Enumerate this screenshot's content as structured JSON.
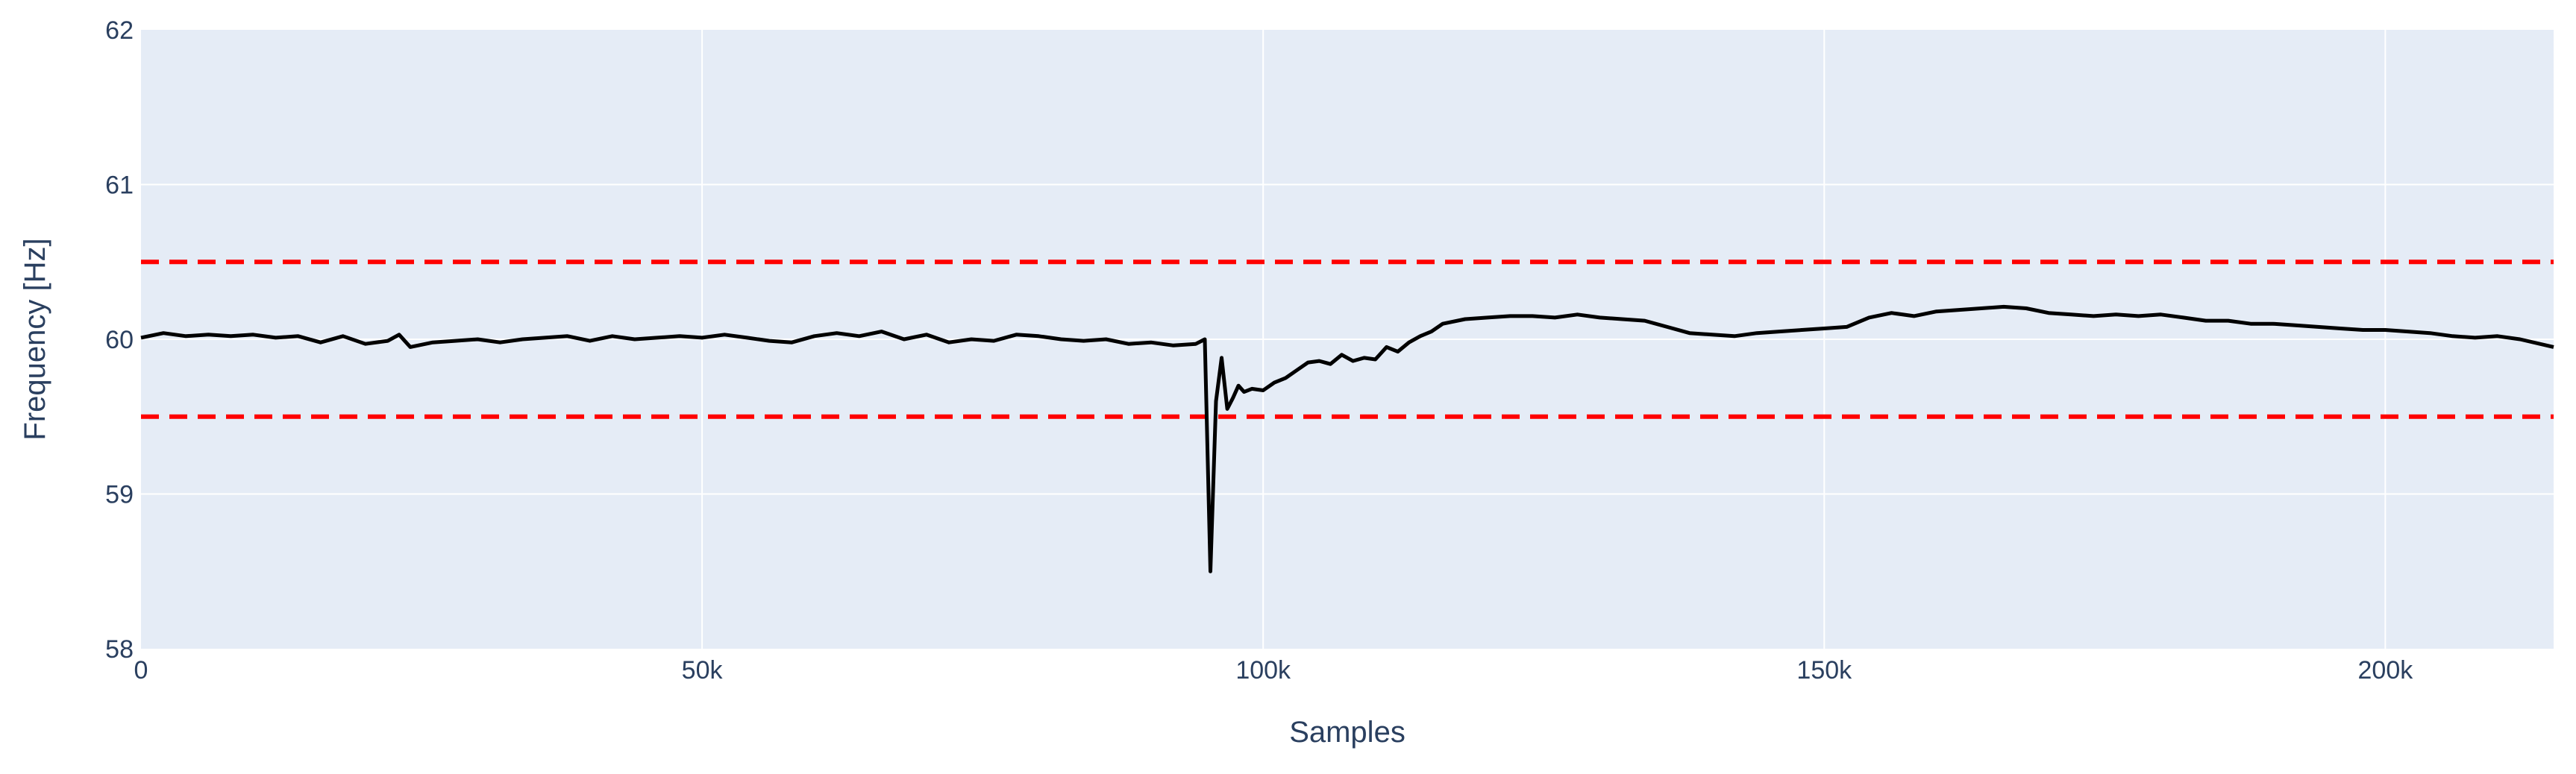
{
  "chart_data": {
    "type": "line",
    "xlabel": "Samples",
    "ylabel": "Frequency [Hz]",
    "xlim": [
      0,
      215000
    ],
    "ylim": [
      58,
      62
    ],
    "x_ticks": [
      {
        "value": 0,
        "label": "0"
      },
      {
        "value": 50000,
        "label": "50k"
      },
      {
        "value": 100000,
        "label": "100k"
      },
      {
        "value": 150000,
        "label": "150k"
      },
      {
        "value": 200000,
        "label": "200k"
      }
    ],
    "y_ticks": [
      {
        "value": 58,
        "label": "58"
      },
      {
        "value": 59,
        "label": "59"
      },
      {
        "value": 60,
        "label": "60"
      },
      {
        "value": 61,
        "label": "61"
      },
      {
        "value": 62,
        "label": "62"
      }
    ],
    "grid": true,
    "legend": "none",
    "colors": {
      "plot_background": "#e5ecf6",
      "grid": "#ffffff",
      "series": "#000000",
      "threshold": "#ff0000",
      "text": "#2a3f5f"
    },
    "series": [
      {
        "x": [
          0,
          2000,
          4000,
          6000,
          8000,
          10000,
          12000,
          14000,
          16000,
          18000,
          20000,
          22000,
          23000,
          24000,
          26000,
          28000,
          30000,
          32000,
          34000,
          36000,
          38000,
          40000,
          42000,
          44000,
          46000,
          48000,
          50000,
          52000,
          54000,
          56000,
          58000,
          60000,
          62000,
          64000,
          66000,
          68000,
          70000,
          72000,
          74000,
          76000,
          78000,
          80000,
          82000,
          84000,
          86000,
          88000,
          90000,
          92000,
          94000,
          94800,
          95300,
          95800,
          96300,
          96800,
          97300,
          97800,
          98300,
          99000,
          100000,
          101000,
          102000,
          103000,
          104000,
          105000,
          106000,
          107000,
          108000,
          109000,
          110000,
          111000,
          112000,
          113000,
          114000,
          115000,
          116000,
          118000,
          120000,
          122000,
          124000,
          126000,
          128000,
          130000,
          132000,
          134000,
          136000,
          138000,
          140000,
          142000,
          144000,
          146000,
          148000,
          150000,
          152000,
          154000,
          156000,
          158000,
          160000,
          162000,
          164000,
          166000,
          168000,
          170000,
          172000,
          174000,
          176000,
          178000,
          180000,
          182000,
          184000,
          186000,
          188000,
          190000,
          192000,
          194000,
          196000,
          198000,
          200000,
          202000,
          204000,
          206000,
          208000,
          210000,
          212000,
          215000
        ],
        "y": [
          60.01,
          60.04,
          60.02,
          60.03,
          60.02,
          60.03,
          60.01,
          60.02,
          59.98,
          60.02,
          59.97,
          59.99,
          60.03,
          59.95,
          59.98,
          59.99,
          60.0,
          59.98,
          60.0,
          60.01,
          60.02,
          59.99,
          60.02,
          60.0,
          60.01,
          60.02,
          60.01,
          60.03,
          60.01,
          59.99,
          59.98,
          60.02,
          60.04,
          60.02,
          60.05,
          60.0,
          60.03,
          59.98,
          60.0,
          59.99,
          60.03,
          60.02,
          60.0,
          59.99,
          60.0,
          59.97,
          59.98,
          59.96,
          59.97,
          60.0,
          58.5,
          59.6,
          59.88,
          59.55,
          59.62,
          59.7,
          59.66,
          59.68,
          59.67,
          59.72,
          59.75,
          59.8,
          59.85,
          59.86,
          59.84,
          59.9,
          59.86,
          59.88,
          59.87,
          59.95,
          59.92,
          59.98,
          60.02,
          60.05,
          60.1,
          60.13,
          60.14,
          60.15,
          60.15,
          60.14,
          60.16,
          60.14,
          60.13,
          60.12,
          60.08,
          60.04,
          60.03,
          60.02,
          60.04,
          60.05,
          60.06,
          60.07,
          60.08,
          60.14,
          60.17,
          60.15,
          60.18,
          60.19,
          60.2,
          60.21,
          60.2,
          60.17,
          60.16,
          60.15,
          60.16,
          60.15,
          60.16,
          60.14,
          60.12,
          60.12,
          60.1,
          60.1,
          60.09,
          60.08,
          60.07,
          60.06,
          60.06,
          60.05,
          60.04,
          60.02,
          60.01,
          60.02,
          60.0,
          59.95
        ]
      }
    ],
    "reference_lines": [
      {
        "y": 60.5,
        "style": "dashed"
      },
      {
        "y": 59.5,
        "style": "dashed"
      }
    ]
  }
}
